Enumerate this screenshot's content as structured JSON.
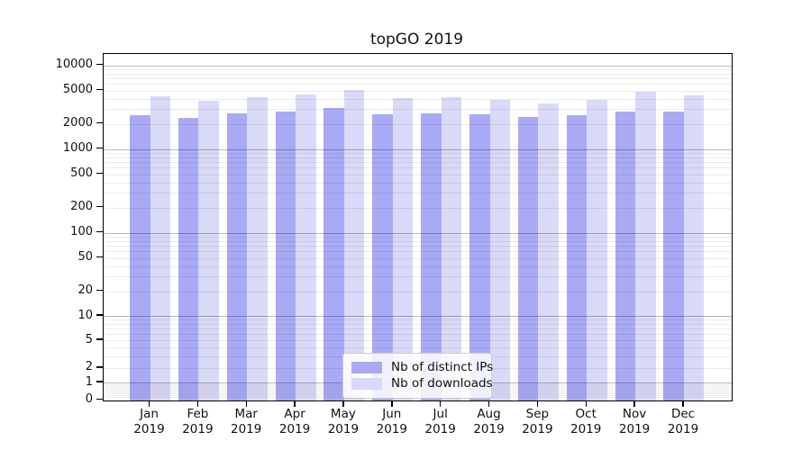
{
  "title": "topGO 2019",
  "legend": {
    "items": [
      {
        "label": "Nb of distinct IPs",
        "color": "#a9a9f5"
      },
      {
        "label": "Nb of downloads",
        "color": "#d9d9f8"
      }
    ]
  },
  "chart_data": {
    "type": "bar",
    "title": "topGO 2019",
    "categories": [
      "Jan",
      "Feb",
      "Mar",
      "Apr",
      "May",
      "Jun",
      "Jul",
      "Aug",
      "Sep",
      "Oct",
      "Nov",
      "Dec"
    ],
    "category_year": "2019",
    "series": [
      {
        "name": "Nb of distinct IPs",
        "color": "#a9a9f5",
        "values": [
          2550,
          2380,
          2680,
          2800,
          3120,
          2600,
          2640,
          2600,
          2410,
          2560,
          2800,
          2830
        ]
      },
      {
        "name": "Nb of downloads",
        "color": "#d9d9f8",
        "values": [
          4240,
          3740,
          4210,
          4490,
          5060,
          4060,
          4130,
          3840,
          3470,
          3840,
          4810,
          4420
        ]
      }
    ],
    "xlabel": "",
    "ylabel": "",
    "yscale": "asinh (log-like above 1, reaches 0)",
    "ylim": [
      0,
      12500
    ],
    "y_tick_labels": [
      "10000",
      "5000",
      "2000",
      "1000",
      "500",
      "200",
      "100",
      "50",
      "20",
      "10",
      "5",
      "2",
      "1",
      "0"
    ],
    "y_tick_values": [
      10000,
      5000,
      2000,
      1000,
      500,
      200,
      100,
      50,
      20,
      10,
      5,
      2,
      1,
      0
    ],
    "grid": "horizontal major (powers of 10) + minor (2-9 multiples)",
    "legend_position": "inside axes, lower center"
  }
}
